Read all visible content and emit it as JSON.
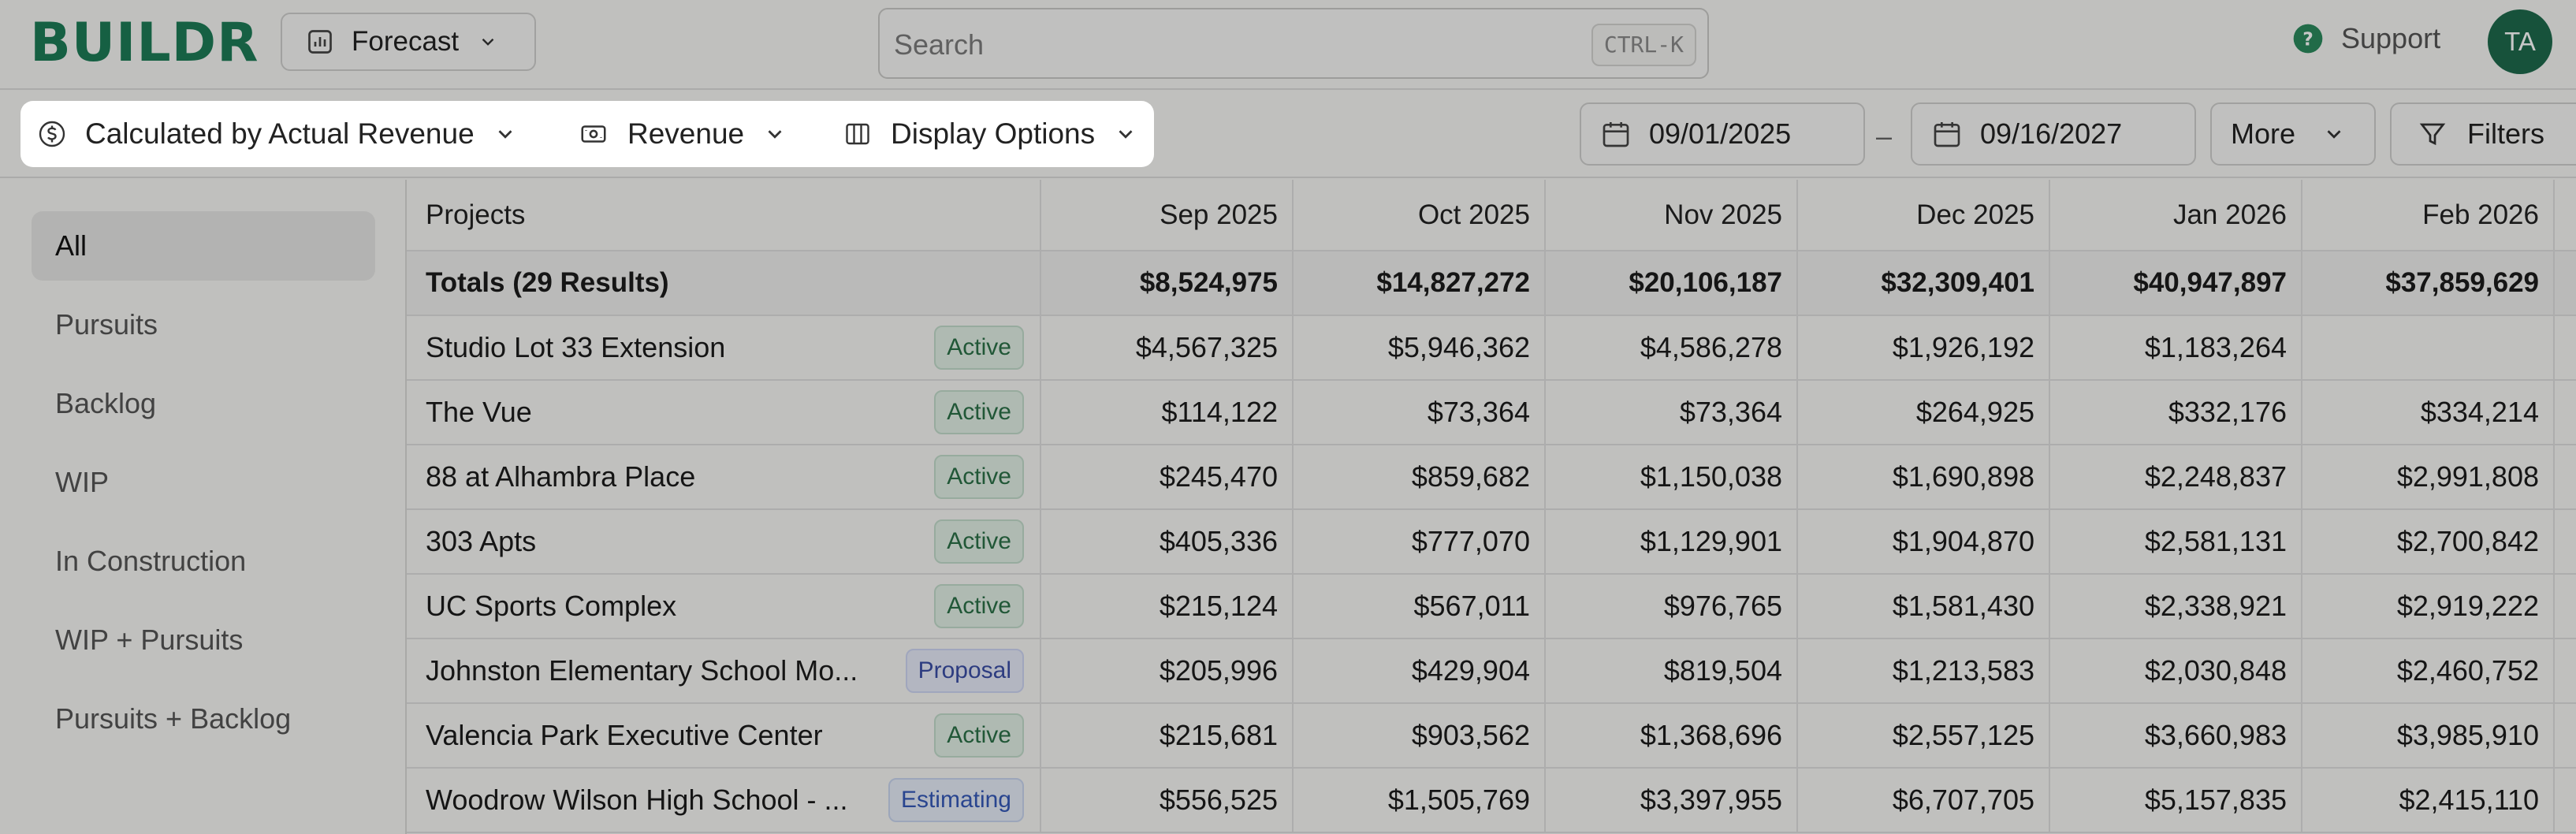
{
  "header": {
    "logo": "BUILDR",
    "view_selector": {
      "label": "Forecast",
      "icon": "chart-icon"
    },
    "search": {
      "placeholder": "Search",
      "shortcut": "CTRL-K"
    },
    "support": {
      "label": "Support",
      "icon": "help-circle-icon"
    },
    "avatar": {
      "initials": "TA"
    }
  },
  "toolbar": {
    "calculated_by": "Calculated by Actual Revenue",
    "metric": "Revenue",
    "display_options": "Display Options",
    "date_start": "09/01/2025",
    "date_separator": "–",
    "date_end": "09/16/2027",
    "more_label": "More",
    "filters_label": "Filters"
  },
  "sidebar": {
    "items": [
      {
        "label": "All",
        "active": true
      },
      {
        "label": "Pursuits",
        "active": false
      },
      {
        "label": "Backlog",
        "active": false
      },
      {
        "label": "WIP",
        "active": false
      },
      {
        "label": "In Construction",
        "active": false
      },
      {
        "label": "WIP + Pursuits",
        "active": false
      },
      {
        "label": "Pursuits + Backlog",
        "active": false
      }
    ]
  },
  "table": {
    "project_header": "Projects",
    "months": [
      "Sep 2025",
      "Oct 2025",
      "Nov 2025",
      "Dec 2025",
      "Jan 2026",
      "Feb 2026"
    ],
    "totals": {
      "label": "Totals (29 Results)",
      "values": [
        "$8,524,975",
        "$14,827,272",
        "$20,106,187",
        "$32,309,401",
        "$40,947,897",
        "$37,859,629"
      ]
    },
    "rows": [
      {
        "name": "Studio Lot 33 Extension",
        "status": "Active",
        "status_type": "active",
        "values": [
          "$4,567,325",
          "$5,946,362",
          "$4,586,278",
          "$1,926,192",
          "$1,183,264",
          ""
        ]
      },
      {
        "name": "The Vue",
        "status": "Active",
        "status_type": "active",
        "values": [
          "$114,122",
          "$73,364",
          "$73,364",
          "$264,925",
          "$332,176",
          "$334,214"
        ]
      },
      {
        "name": "88 at Alhambra Place",
        "status": "Active",
        "status_type": "active",
        "values": [
          "$245,470",
          "$859,682",
          "$1,150,038",
          "$1,690,898",
          "$2,248,837",
          "$2,991,808"
        ]
      },
      {
        "name": "303 Apts",
        "status": "Active",
        "status_type": "active",
        "values": [
          "$405,336",
          "$777,070",
          "$1,129,901",
          "$1,904,870",
          "$2,581,131",
          "$2,700,842"
        ]
      },
      {
        "name": "UC Sports Complex",
        "status": "Active",
        "status_type": "active",
        "values": [
          "$215,124",
          "$567,011",
          "$976,765",
          "$1,581,430",
          "$2,338,921",
          "$2,919,222"
        ]
      },
      {
        "name": "Johnston Elementary School Mo...",
        "status": "Proposal",
        "status_type": "proposal",
        "values": [
          "$205,996",
          "$429,904",
          "$819,504",
          "$1,213,583",
          "$2,030,848",
          "$2,460,752"
        ]
      },
      {
        "name": "Valencia Park Executive Center",
        "status": "Active",
        "status_type": "active",
        "values": [
          "$215,681",
          "$903,562",
          "$1,368,696",
          "$2,557,125",
          "$3,660,983",
          "$3,985,910"
        ]
      },
      {
        "name": "Woodrow Wilson High School - ...",
        "status": "Estimating",
        "status_type": "estimating",
        "values": [
          "$556,525",
          "$1,505,769",
          "$3,397,955",
          "$6,707,705",
          "$5,157,835",
          "$2,415,110"
        ]
      }
    ]
  },
  "colors": {
    "brand": "#1d7c57",
    "avatar_bg": "#1e6a4c",
    "badge_active": "#2b7047",
    "badge_proposal": "#3a4ea5",
    "badge_estimating": "#3559b8"
  }
}
